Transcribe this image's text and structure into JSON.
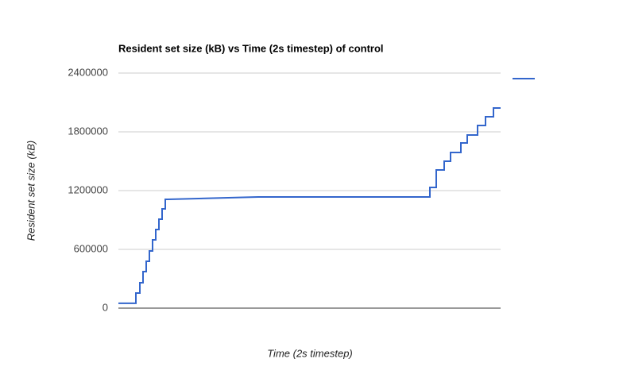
{
  "chart_data": {
    "type": "line",
    "title": "Resident set size (kB) vs Time (2s timestep) of control",
    "x_label": "Time (2s timestep)",
    "y_label": "Resident set size (kB)",
    "xlim": [
      0,
      481
    ],
    "ylim": [
      0,
      2400000
    ],
    "yticks": [
      0,
      600000,
      1200000,
      1800000,
      2400000
    ],
    "grid": true,
    "legend": "right",
    "series": [
      {
        "color": "#3366cc",
        "x": [
          0,
          22,
          22,
          27,
          27,
          31,
          31,
          35,
          35,
          39,
          39,
          43,
          43,
          47,
          47,
          51,
          51,
          55,
          55,
          59,
          59,
          62,
          176,
          392,
          392,
          400,
          400,
          410,
          410,
          418,
          418,
          431,
          431,
          439,
          439,
          452,
          452,
          462,
          462,
          472,
          472,
          481
        ],
        "values": [
          50000,
          50000,
          154000,
          154000,
          259000,
          259000,
          373000,
          373000,
          478000,
          478000,
          584000,
          584000,
          697000,
          697000,
          803000,
          803000,
          908000,
          908000,
          1014000,
          1014000,
          1111000,
          1111000,
          1135000,
          1135000,
          1232000,
          1232000,
          1411000,
          1411000,
          1500000,
          1500000,
          1589000,
          1589000,
          1686000,
          1686000,
          1768000,
          1768000,
          1865000,
          1865000,
          1954000,
          1954000,
          2043000,
          2043000
        ]
      }
    ]
  }
}
